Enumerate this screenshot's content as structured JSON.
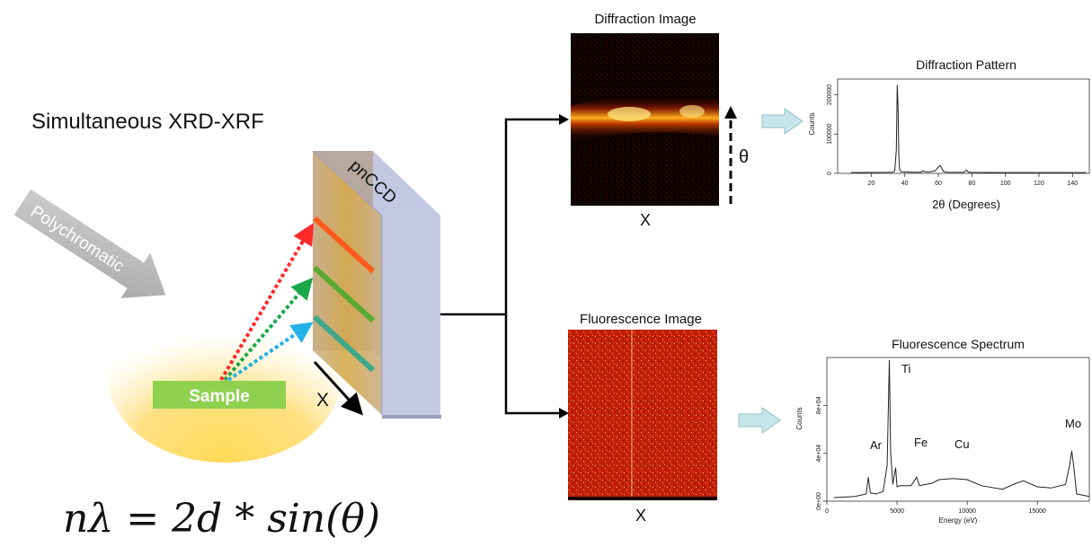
{
  "title": "Simultaneous XRD-XRF",
  "beam_label": "Polychromatic",
  "sample_label": "Sample",
  "detector_label": "pnCCD",
  "x_axis_label": "X",
  "theta_label": "θ",
  "formula": "nλ = 2d * sin(θ)",
  "diffraction_image": {
    "title": "Diffraction Image",
    "x_label": "X"
  },
  "fluorescence_image": {
    "title": "Fluorescence Image",
    "x_label": "X"
  },
  "colors": {
    "ray_red": "#ff2a2a",
    "ray_orange": "#ff8c00",
    "ray_green": "#1aa84a",
    "ray_cyan": "#22b2e6",
    "sample": "#8fd14f",
    "beam": "#b3b3b3",
    "arrow_fill": "#c8e6ea",
    "trace": "#222222"
  },
  "chart_data": [
    {
      "type": "line",
      "title": "Diffraction Pattern",
      "xlabel": "2θ (Degrees)",
      "ylabel": "Counts",
      "xlim": [
        0,
        150
      ],
      "ylim": [
        0,
        240000
      ],
      "xticks": [
        "20",
        "40",
        "60",
        "80",
        "100",
        "120",
        "140"
      ],
      "yticks": [
        "0",
        "100000",
        "200000"
      ],
      "x": [
        8,
        30,
        33,
        34,
        35,
        35.5,
        36,
        36.5,
        37,
        38,
        45,
        50,
        51,
        52,
        55,
        58,
        60,
        61,
        62,
        63,
        65,
        75,
        76,
        77,
        78,
        80,
        100,
        148
      ],
      "y": [
        2000,
        2500,
        3000,
        6000,
        60000,
        225000,
        170000,
        40000,
        8000,
        4000,
        3000,
        3000,
        7000,
        4000,
        4000,
        6000,
        16000,
        20000,
        14000,
        5000,
        3000,
        2500,
        6000,
        8000,
        3000,
        2500,
        2000,
        2000
      ]
    },
    {
      "type": "line",
      "title": "Fluorescence Spectrum",
      "xlabel": "Energy (eV)",
      "ylabel": "Counts",
      "xlim": [
        0,
        18700
      ],
      "ylim": [
        0,
        120000
      ],
      "xticks": [
        "0",
        "5000",
        "10000",
        "15000"
      ],
      "yticks": [
        "0e+00",
        "4e+04",
        "8e+04"
      ],
      "annotations": [
        "Ar",
        "Ti",
        "Fe",
        "Cu",
        "Mo"
      ],
      "x": [
        500,
        2000,
        2800,
        2950,
        3100,
        3500,
        4000,
        4300,
        4450,
        4550,
        4700,
        4900,
        5000,
        5200,
        6000,
        6400,
        6600,
        7500,
        8000,
        9000,
        10000,
        11000,
        12500,
        13500,
        14000,
        15000,
        16000,
        17000,
        17300,
        17450,
        17600,
        17800,
        18700
      ],
      "y": [
        3000,
        4000,
        6000,
        20000,
        7000,
        6000,
        8000,
        30000,
        118000,
        40000,
        14000,
        28000,
        12000,
        13000,
        13000,
        20000,
        13000,
        15000,
        18000,
        19000,
        18000,
        13000,
        10000,
        15000,
        17000,
        12000,
        11000,
        14000,
        30000,
        42000,
        28000,
        6000,
        4000
      ]
    }
  ]
}
